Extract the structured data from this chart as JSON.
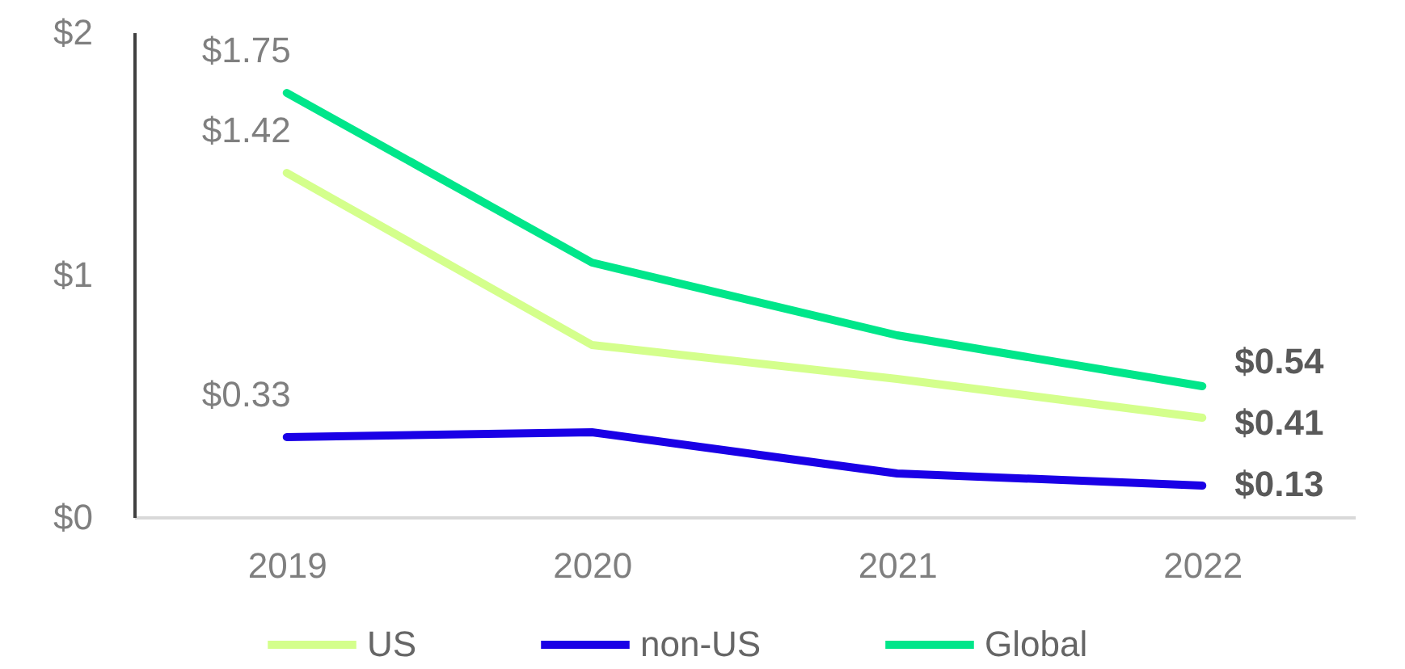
{
  "chart_data": {
    "type": "line",
    "categories": [
      "2019",
      "2020",
      "2021",
      "2022"
    ],
    "series": [
      {
        "name": "US",
        "color": "#d4ff8c",
        "values": [
          1.42,
          0.71,
          0.57,
          0.41
        ],
        "value_labels": [
          "$1.42",
          null,
          null,
          "$0.41"
        ]
      },
      {
        "name": "non-US",
        "color": "#1a00e6",
        "values": [
          0.33,
          0.35,
          0.18,
          0.13
        ],
        "value_labels": [
          "$0.33",
          null,
          null,
          "$0.13"
        ]
      },
      {
        "name": "Global",
        "color": "#00e68a",
        "values": [
          1.75,
          1.05,
          0.75,
          0.54
        ],
        "value_labels": [
          "$1.75",
          null,
          null,
          "$0.54"
        ]
      }
    ],
    "ylim": [
      0,
      2
    ],
    "yticks": [
      {
        "value": 0,
        "label": "$0"
      },
      {
        "value": 1,
        "label": "$1"
      },
      {
        "value": 2,
        "label": "$2"
      }
    ],
    "grid": false,
    "legend": "bottom"
  }
}
